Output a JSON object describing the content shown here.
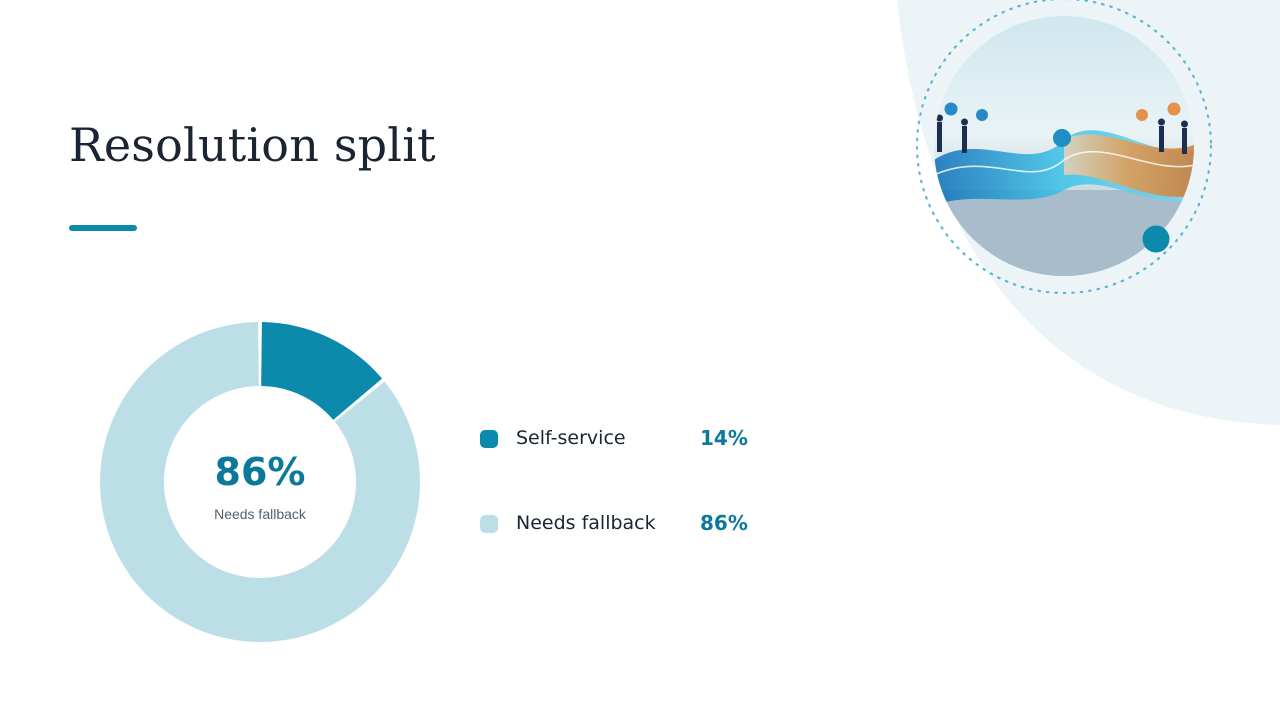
{
  "slide": {
    "title": "Resolution split",
    "accent_color": "#0b8aac",
    "illustration": "people-connected-by-data-stream-image"
  },
  "chart_data": {
    "type": "pie",
    "style": "donut",
    "title": "",
    "center": {
      "value": "86%",
      "label": "Needs fallback"
    },
    "series": [
      {
        "name": "Self-service",
        "value": 14,
        "display": "14%",
        "color": "#0b8aac"
      },
      {
        "name": "Needs fallback",
        "value": 86,
        "display": "86%",
        "color": "#bcdfe7"
      }
    ],
    "legend_position": "right"
  }
}
